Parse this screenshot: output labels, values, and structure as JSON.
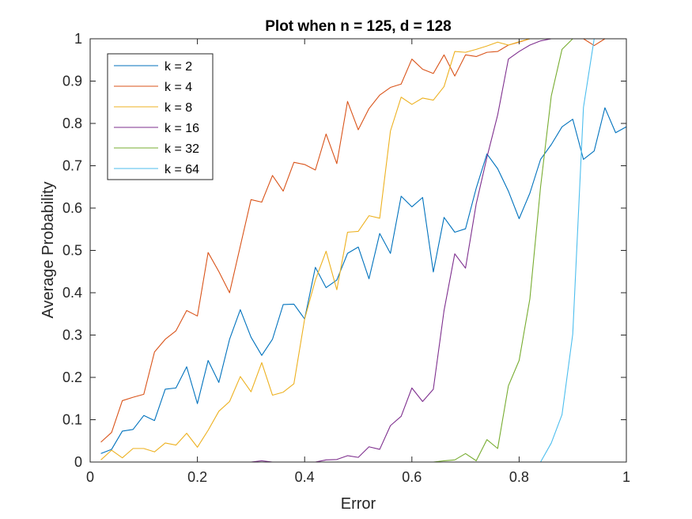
{
  "chart_data": {
    "type": "line",
    "title": "Plot when n = 125, d = 128",
    "xlabel": "Error",
    "ylabel": "Average Probability",
    "xlim": [
      0,
      1
    ],
    "ylim": [
      0,
      1
    ],
    "x_ticks": [
      "0",
      "0.2",
      "0.4",
      "0.6",
      "0.8",
      "1"
    ],
    "y_ticks": [
      "0",
      "0.1",
      "0.2",
      "0.3",
      "0.4",
      "0.5",
      "0.6",
      "0.7",
      "0.8",
      "0.9",
      "1"
    ],
    "grid": false,
    "legend_position": "top-left",
    "x": [
      0.02,
      0.04,
      0.06,
      0.08,
      0.1,
      0.12,
      0.14,
      0.16,
      0.18,
      0.2,
      0.22,
      0.24,
      0.26,
      0.28,
      0.3,
      0.32,
      0.34,
      0.36,
      0.38,
      0.4,
      0.42,
      0.44,
      0.46,
      0.48,
      0.5,
      0.52,
      0.54,
      0.56,
      0.58,
      0.6,
      0.62,
      0.64,
      0.66,
      0.68,
      0.7,
      0.72,
      0.74,
      0.76,
      0.78,
      0.8,
      0.82,
      0.84,
      0.86,
      0.88,
      0.9,
      0.92,
      0.94,
      0.96,
      0.98,
      1.0
    ],
    "series": [
      {
        "name": "k = 2",
        "color": "#0072BD",
        "values": [
          0.02,
          0.03,
          0.073,
          0.077,
          0.11,
          0.098,
          0.172,
          0.175,
          0.225,
          0.138,
          0.24,
          0.188,
          0.29,
          0.36,
          0.295,
          0.252,
          0.29,
          0.372,
          0.373,
          0.338,
          0.46,
          0.412,
          0.43,
          0.493,
          0.508,
          0.433,
          0.54,
          0.493,
          0.628,
          0.603,
          0.625,
          0.449,
          0.578,
          0.543,
          0.551,
          0.647,
          0.728,
          0.693,
          0.64,
          0.575,
          0.635,
          0.715,
          0.75,
          0.792,
          0.81,
          0.715,
          0.735,
          0.837,
          0.778,
          0.792
        ]
      },
      {
        "name": "k = 4",
        "color": "#D95319",
        "values": [
          0.047,
          0.07,
          0.145,
          0.153,
          0.16,
          0.26,
          0.29,
          0.31,
          0.358,
          0.345,
          0.495,
          0.45,
          0.4,
          0.51,
          0.62,
          0.614,
          0.677,
          0.64,
          0.708,
          0.703,
          0.69,
          0.775,
          0.705,
          0.852,
          0.785,
          0.835,
          0.867,
          0.885,
          0.893,
          0.952,
          0.928,
          0.918,
          0.962,
          0.912,
          0.962,
          0.958,
          0.968,
          0.97,
          0.985,
          0.992,
          1.0,
          1.0,
          1.0,
          1.0,
          1.0,
          1.0,
          0.984,
          1.0,
          1.0,
          1.0
        ]
      },
      {
        "name": "k = 8",
        "color": "#EDB120",
        "values": [
          0.005,
          0.028,
          0.01,
          0.032,
          0.032,
          0.024,
          0.045,
          0.04,
          0.068,
          0.035,
          0.075,
          0.12,
          0.143,
          0.202,
          0.166,
          0.235,
          0.158,
          0.165,
          0.185,
          0.338,
          0.43,
          0.498,
          0.407,
          0.543,
          0.545,
          0.582,
          0.576,
          0.782,
          0.862,
          0.845,
          0.86,
          0.855,
          0.887,
          0.97,
          0.968,
          0.975,
          0.983,
          0.992,
          0.985,
          0.993,
          1.0,
          1.0,
          1.0,
          1.0,
          1.0,
          1.0,
          1.0,
          1.0,
          1.0,
          1.0
        ]
      },
      {
        "name": "k = 16",
        "color": "#7E2F8E",
        "values": [
          0,
          0,
          0,
          0,
          0,
          0,
          0,
          0,
          0,
          0,
          0,
          0,
          0,
          0,
          0,
          0.003,
          0,
          0,
          0,
          0,
          0,
          0.005,
          0.006,
          0.015,
          0.011,
          0.036,
          0.03,
          0.086,
          0.108,
          0.175,
          0.143,
          0.172,
          0.358,
          0.492,
          0.458,
          0.61,
          0.72,
          0.82,
          0.952,
          0.97,
          0.985,
          0.995,
          1.0,
          1.0,
          1.0,
          1.0,
          1.0,
          1.0,
          1.0,
          1.0
        ]
      },
      {
        "name": "k = 32",
        "color": "#77AC30",
        "values": [
          0,
          0,
          0,
          0,
          0,
          0,
          0,
          0,
          0,
          0,
          0,
          0,
          0,
          0,
          0,
          0,
          0,
          0,
          0,
          0,
          0,
          0,
          0,
          0,
          0,
          0,
          0,
          0,
          0,
          0,
          0,
          0,
          0.003,
          0.005,
          0.02,
          0.003,
          0.053,
          0.032,
          0.18,
          0.24,
          0.385,
          0.65,
          0.865,
          0.975,
          1.0,
          1.0,
          1.0,
          1.0,
          1.0,
          1.0
        ]
      },
      {
        "name": "k = 64",
        "color": "#4DBEEE",
        "values": [
          0,
          0,
          0,
          0,
          0,
          0,
          0,
          0,
          0,
          0,
          0,
          0,
          0,
          0,
          0,
          0,
          0,
          0,
          0,
          0,
          0,
          0,
          0,
          0,
          0,
          0,
          0,
          0,
          0,
          0,
          0,
          0,
          0,
          0,
          0,
          0,
          0,
          0,
          0,
          0,
          0,
          0,
          0.045,
          0.112,
          0.302,
          0.838,
          1.0,
          1.0,
          1.0,
          1.0
        ]
      }
    ]
  }
}
